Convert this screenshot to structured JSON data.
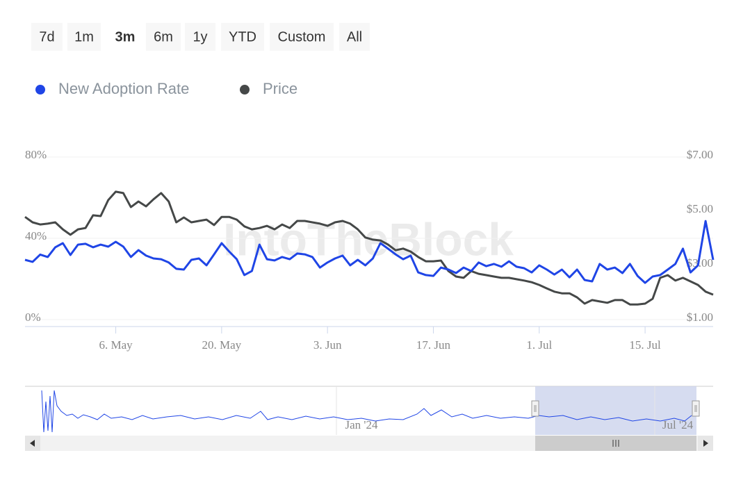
{
  "range_selector": {
    "buttons": [
      "7d",
      "1m",
      "3m",
      "6m",
      "1y",
      "YTD",
      "Custom",
      "All"
    ],
    "selected_index": 2
  },
  "watermark": "IntoTheBlock",
  "chart_data": {
    "type": "line",
    "legend": "top-left",
    "grid": true,
    "categories": [
      null,
      null,
      null,
      null,
      null,
      null,
      null,
      null,
      null,
      null,
      null,
      null,
      "6. May",
      null,
      null,
      null,
      null,
      null,
      null,
      null,
      null,
      null,
      null,
      null,
      null,
      null,
      "20. May",
      null,
      null,
      null,
      null,
      null,
      null,
      null,
      null,
      null,
      null,
      null,
      null,
      null,
      "3. Jun",
      null,
      null,
      null,
      null,
      null,
      null,
      null,
      null,
      null,
      null,
      null,
      null,
      null,
      "17. Jun",
      null,
      null,
      null,
      null,
      null,
      null,
      null,
      null,
      null,
      null,
      null,
      null,
      null,
      "1. Jul",
      null,
      null,
      null,
      null,
      null,
      null,
      null,
      null,
      null,
      null,
      null,
      null,
      null,
      "15. Jul",
      null,
      null,
      null,
      null,
      null,
      null,
      null,
      null,
      null
    ],
    "series": [
      {
        "name": "New Adoption Rate",
        "color": "#1f45e6",
        "values": [
          29.4,
          28.4,
          32,
          30.8,
          35.6,
          37.6,
          31.8,
          36.9,
          37.3,
          35.6,
          36.9,
          35.9,
          38.3,
          35.9,
          30.8,
          34.2,
          31.5,
          30.1,
          29.7,
          28.1,
          25,
          24.6,
          29.4,
          30.1,
          26.7,
          32.1,
          37.6,
          33.5,
          29.7,
          21.9,
          23.9,
          36.9,
          29.7,
          29.1,
          30.8,
          29.7,
          32.5,
          32.1,
          30.8,
          25.6,
          28.1,
          30.1,
          31.5,
          26.7,
          29.4,
          26.7,
          30.1,
          37.6,
          34.9,
          32.1,
          29.7,
          31.5,
          23.2,
          21.9,
          21.5,
          25.6,
          24.6,
          22.9,
          25.6,
          23.9,
          28.1,
          26.3,
          27.4,
          26,
          28.7,
          26,
          25.3,
          23.2,
          26.7,
          24.6,
          22.2,
          24.6,
          20.8,
          24.6,
          19.5,
          18.8,
          27.4,
          24.6,
          25.6,
          22.9,
          27.4,
          21.5,
          18.1,
          21.2,
          21.9,
          24.6,
          27.4,
          34.9,
          23.2,
          26.7,
          48.5,
          29.4
        ]
      },
      {
        "name": "Price",
        "color": "#454848",
        "axis": "y2",
        "values": [
          4.79,
          4.59,
          4.51,
          4.54,
          4.59,
          4.33,
          4.13,
          4.33,
          4.38,
          4.85,
          4.82,
          5.41,
          5.72,
          5.67,
          5.15,
          5.36,
          5.18,
          5.44,
          5.67,
          5.36,
          4.59,
          4.77,
          4.59,
          4.64,
          4.69,
          4.49,
          4.79,
          4.79,
          4.69,
          4.44,
          4.33,
          4.38,
          4.46,
          4.33,
          4.51,
          4.38,
          4.64,
          4.64,
          4.59,
          4.54,
          4.46,
          4.59,
          4.64,
          4.54,
          4.33,
          4.03,
          3.95,
          3.92,
          3.77,
          3.56,
          3.62,
          3.51,
          3.31,
          3.15,
          3.15,
          3.18,
          2.79,
          2.59,
          2.54,
          2.79,
          2.69,
          2.64,
          2.59,
          2.54,
          2.54,
          2.49,
          2.44,
          2.38,
          2.28,
          2.15,
          2.03,
          1.97,
          1.97,
          1.82,
          1.59,
          1.72,
          1.67,
          1.62,
          1.72,
          1.72,
          1.56,
          1.56,
          1.59,
          1.77,
          2.54,
          2.64,
          2.44,
          2.54,
          2.41,
          2.28,
          2.03,
          1.92
        ]
      }
    ],
    "ylim": [
      0,
      80
    ],
    "yticks": [
      {
        "value": 0,
        "label": "0%"
      },
      {
        "value": 40,
        "label": "40%"
      },
      {
        "value": 80,
        "label": "80%"
      }
    ],
    "y2lim": [
      1,
      7
    ],
    "y2ticks": [
      {
        "value": 1,
        "label": "$1.00"
      },
      {
        "value": 3,
        "label": "$3.00"
      },
      {
        "value": 5,
        "label": "$5.00"
      },
      {
        "value": 7,
        "label": "$7.00"
      }
    ]
  },
  "navigator": {
    "labels": [
      "Jan '24",
      "Jul '24"
    ]
  }
}
